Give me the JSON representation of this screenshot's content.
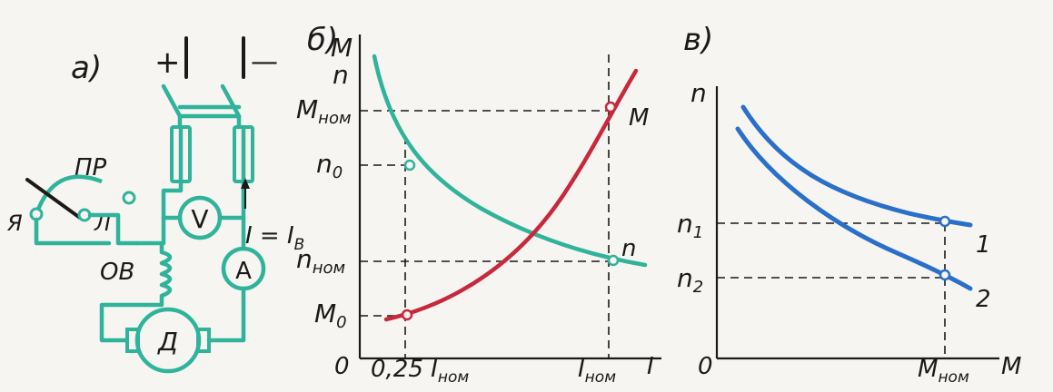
{
  "colors": {
    "teal": "#2fb39b",
    "red": "#c8283c",
    "blue": "#2a6fc9",
    "ink": "#1a1a1a",
    "paper": "#f6f5f1"
  },
  "panel_a": {
    "label": "а)",
    "plus": "+",
    "minus": "—",
    "rheostat": "ПР",
    "terminal_ya": "Я",
    "terminal_l": "Л",
    "voltmeter": "V",
    "ammeter": "A",
    "field_winding": "ОВ",
    "motor": "Д",
    "current": "I = I",
    "current_sub": "В"
  },
  "panel_b": {
    "label": "б)",
    "y_axis_top": "M",
    "y_axis_second": "n",
    "origin": "0",
    "x_axis": "I",
    "y_ticks": [
      {
        "main": "M",
        "sub": "ном"
      },
      {
        "main": "n",
        "sub": "0"
      },
      {
        "main": "n",
        "sub": "ном"
      },
      {
        "main": "M",
        "sub": "0"
      }
    ],
    "x_ticks": [
      {
        "main": "0,25 I",
        "sub": "ном"
      },
      {
        "main": "I",
        "sub": "ном"
      }
    ],
    "curve_m_label": "M",
    "curve_n_label": "n"
  },
  "panel_c": {
    "label": "в)",
    "y_axis": "n",
    "origin": "0",
    "x_axis": "M",
    "y_ticks": [
      {
        "main": "n",
        "sub": "1"
      },
      {
        "main": "n",
        "sub": "2"
      }
    ],
    "x_tick": {
      "main": "M",
      "sub": "ном"
    },
    "curve1_label": "1",
    "curve2_label": "2"
  }
}
